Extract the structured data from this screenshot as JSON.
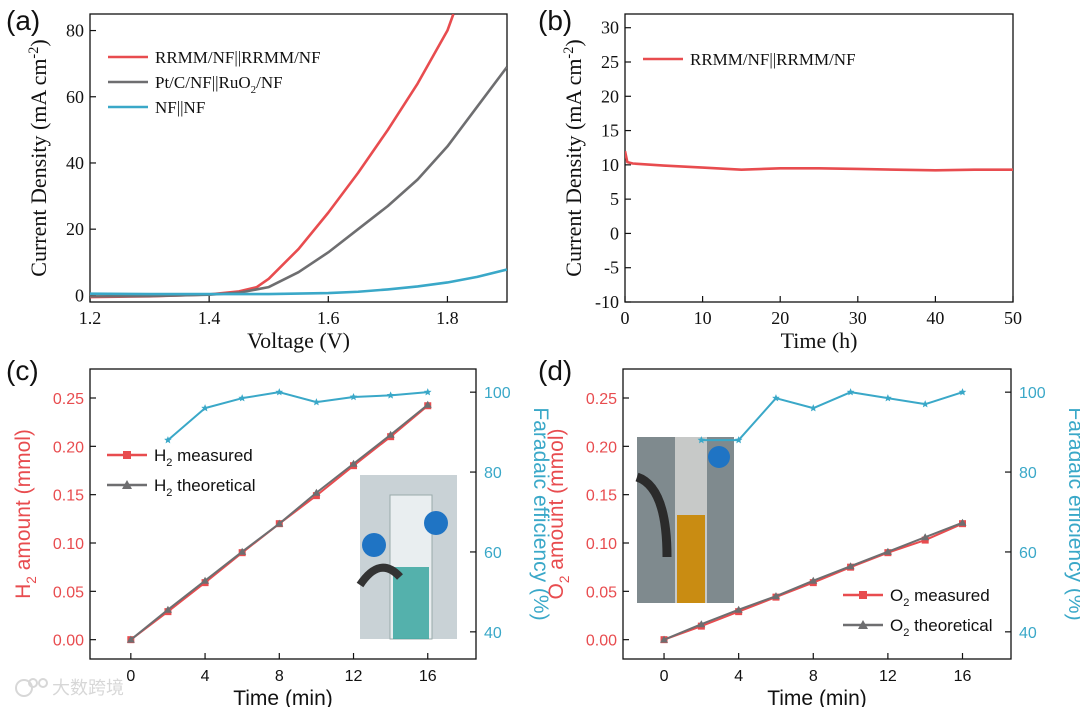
{
  "colors": {
    "red": "#e84c4f",
    "gray": "#6e6e70",
    "cyan": "#3aa8c8",
    "axis": "#111111"
  },
  "chart_data": [
    {
      "type": "line",
      "panel_label": "(a)",
      "xlabel": "Voltage (V)",
      "ylabel": "Current Density (mA cm",
      "ylabel_sup": "-2",
      "ylabel_end": ")",
      "xlim": [
        1.2,
        1.9
      ],
      "ylim": [
        -2,
        85
      ],
      "xticks": [
        1.2,
        1.4,
        1.6,
        1.8
      ],
      "xtick_labels": [
        "1.2",
        "1.4",
        "1.6",
        "1.8"
      ],
      "yticks": [
        0,
        20,
        40,
        60,
        80
      ],
      "ytick_labels": [
        "0",
        "20",
        "40",
        "60",
        "80"
      ],
      "legend_position": "top-left",
      "series": [
        {
          "name": "RRMM/NF||RRMM/NF",
          "legend": {
            "text": "RRMM/NF||RRMM/NF"
          },
          "color": "red",
          "x": [
            1.2,
            1.3,
            1.4,
            1.45,
            1.48,
            1.5,
            1.55,
            1.6,
            1.65,
            1.7,
            1.75,
            1.8,
            1.81
          ],
          "y": [
            -0.5,
            -0.3,
            0.3,
            1.2,
            2.5,
            5,
            14,
            25,
            37,
            50,
            64,
            80,
            85
          ]
        },
        {
          "name": "Pt/C/NF||RuO2/NF",
          "legend": {
            "text": "Pt/C/NF||RuO",
            "sub": "2",
            "rest": "/NF"
          },
          "color": "gray",
          "x": [
            1.2,
            1.3,
            1.4,
            1.45,
            1.5,
            1.55,
            1.6,
            1.65,
            1.7,
            1.75,
            1.8,
            1.85,
            1.9
          ],
          "y": [
            -0.3,
            -0.2,
            0.2,
            0.8,
            2.5,
            7,
            13,
            20,
            27,
            35,
            45,
            57,
            69
          ]
        },
        {
          "name": "NF||NF",
          "legend": {
            "text": "NF||NF"
          },
          "color": "cyan",
          "x": [
            1.2,
            1.3,
            1.4,
            1.5,
            1.6,
            1.65,
            1.7,
            1.75,
            1.8,
            1.85,
            1.9
          ],
          "y": [
            0.5,
            0.4,
            0.4,
            0.4,
            0.7,
            1.1,
            1.8,
            2.7,
            3.9,
            5.6,
            7.8
          ]
        }
      ]
    },
    {
      "type": "line",
      "panel_label": "(b)",
      "xlabel": "Time (h)",
      "ylabel": "Current Density (mA cm",
      "ylabel_sup": "-2",
      "ylabel_end": ")",
      "xlim": [
        0,
        50
      ],
      "ylim": [
        -10,
        32
      ],
      "xticks": [
        0,
        10,
        20,
        30,
        40,
        50
      ],
      "xtick_labels": [
        "0",
        "10",
        "20",
        "30",
        "40",
        "50"
      ],
      "yticks": [
        -10,
        -5,
        0,
        5,
        10,
        15,
        20,
        25,
        30
      ],
      "ytick_labels": [
        "-10",
        "-5",
        "0",
        "5",
        "10",
        "15",
        "20",
        "25",
        "30"
      ],
      "legend_position": "top-left",
      "series": [
        {
          "name": "RRMM/NF||RRMM/NF",
          "legend": {
            "text": "RRMM/NF||RRMM/NF"
          },
          "color": "red",
          "x": [
            0,
            0.3,
            1,
            5,
            10,
            15,
            20,
            25,
            30,
            35,
            40,
            45,
            50
          ],
          "y": [
            12.0,
            10.4,
            10.2,
            9.9,
            9.6,
            9.3,
            9.5,
            9.5,
            9.4,
            9.3,
            9.2,
            9.3,
            9.3
          ]
        }
      ]
    },
    {
      "type": "line",
      "panel_label": "(c)",
      "xlabel": "Time (min)",
      "ylabel": "H",
      "ylabel_sub": "2",
      "ylabel_end": " amount (mmol)",
      "y2label": "Faradaic efficiency (%)",
      "xlim": [
        -2.2,
        18.6
      ],
      "ylim": [
        -0.02,
        0.28
      ],
      "y2lim": [
        33.2,
        105.8
      ],
      "xticks": [
        0,
        4,
        8,
        12,
        16
      ],
      "xtick_labels": [
        "0",
        "4",
        "8",
        "12",
        "16"
      ],
      "yticks": [
        0,
        0.05,
        0.1,
        0.15,
        0.2,
        0.25
      ],
      "ytick_labels": [
        "0.00",
        "0.05",
        "0.10",
        "0.15",
        "0.20",
        "0.25"
      ],
      "y2ticks": [
        40,
        60,
        80,
        100
      ],
      "y2tick_labels": [
        "40",
        "60",
        "80",
        "100"
      ],
      "legend_position": "center-left",
      "series": [
        {
          "name": "H2 measured",
          "legend": {
            "text": "H",
            "sub": "2",
            "rest": " measured"
          },
          "color": "red",
          "marker": "square",
          "x": [
            0,
            2,
            4,
            6,
            8,
            10,
            12,
            14,
            16
          ],
          "y": [
            0.0,
            0.029,
            0.059,
            0.09,
            0.12,
            0.149,
            0.18,
            0.21,
            0.242
          ]
        },
        {
          "name": "H2 theoretical",
          "legend": {
            "text": "H",
            "sub": "2",
            "rest": " theoretical"
          },
          "color": "gray",
          "marker": "triangle",
          "x": [
            0,
            2,
            4,
            6,
            8,
            10,
            12,
            14,
            16
          ],
          "y": [
            0.0,
            0.031,
            0.061,
            0.091,
            0.12,
            0.152,
            0.182,
            0.212,
            0.243
          ]
        },
        {
          "name": "Faradaic efficiency",
          "axis": "right",
          "color": "cyan",
          "marker": "star",
          "x": [
            2,
            4,
            6,
            8,
            10,
            12,
            14,
            16
          ],
          "y": [
            88,
            96,
            98.5,
            100,
            97.5,
            98.8,
            99.2,
            100
          ]
        }
      ],
      "inset": "photo of gas collection burette with blue liquid"
    },
    {
      "type": "line",
      "panel_label": "(d)",
      "xlabel": "Time (min)",
      "ylabel": "O",
      "ylabel_sub": "2",
      "ylabel_end": " amount (mmol)",
      "y2label": "Faradaic efficiency (%)",
      "xlim": [
        -2.2,
        18.6
      ],
      "ylim": [
        -0.02,
        0.28
      ],
      "y2lim": [
        33.2,
        105.8
      ],
      "xticks": [
        0,
        4,
        8,
        12,
        16
      ],
      "xtick_labels": [
        "0",
        "4",
        "8",
        "12",
        "16"
      ],
      "yticks": [
        0,
        0.05,
        0.1,
        0.15,
        0.2,
        0.25
      ],
      "ytick_labels": [
        "0.00",
        "0.05",
        "0.10",
        "0.15",
        "0.20",
        "0.25"
      ],
      "y2ticks": [
        40,
        60,
        80,
        100
      ],
      "y2tick_labels": [
        "40",
        "60",
        "80",
        "100"
      ],
      "legend_position": "bottom-right",
      "series": [
        {
          "name": "O2 measured",
          "legend": {
            "text": "O",
            "sub": "2",
            "rest": " measured"
          },
          "color": "red",
          "marker": "square",
          "x": [
            0,
            2,
            4,
            6,
            8,
            10,
            12,
            14,
            16
          ],
          "y": [
            0.0,
            0.014,
            0.029,
            0.044,
            0.059,
            0.075,
            0.09,
            0.103,
            0.12
          ]
        },
        {
          "name": "O2 theoretical",
          "legend": {
            "text": "O",
            "sub": "2",
            "rest": " theoretical"
          },
          "color": "gray",
          "marker": "triangle",
          "x": [
            0,
            2,
            4,
            6,
            8,
            10,
            12,
            14,
            16
          ],
          "y": [
            0.0,
            0.016,
            0.031,
            0.045,
            0.061,
            0.076,
            0.091,
            0.106,
            0.121
          ]
        },
        {
          "name": "Faradaic efficiency",
          "axis": "right",
          "color": "cyan",
          "marker": "star",
          "x": [
            2,
            4,
            6,
            8,
            10,
            12,
            14,
            16
          ],
          "y": [
            88,
            88,
            98.5,
            96,
            100,
            98.5,
            97,
            100
          ]
        }
      ],
      "inset": "photo of gas collection burette with yellow liquid"
    }
  ],
  "watermark": "大数跨境"
}
